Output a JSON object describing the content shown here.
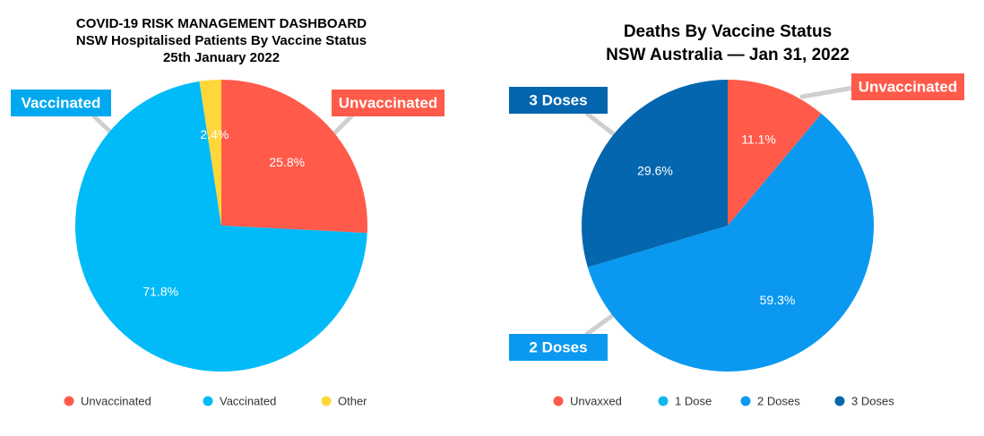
{
  "chart_data": [
    {
      "type": "pie",
      "title_lines": [
        "COVID-19 RISK MANAGEMENT DASHBOARD",
        "NSW Hospitalised Patients By Vaccine Status",
        "25th January 2022"
      ],
      "slices": [
        {
          "name": "Unvaccinated",
          "value": 25.8,
          "label": "25.8%",
          "color": "#FF5A4A"
        },
        {
          "name": "Vaccinated",
          "value": 71.8,
          "label": "71.8%",
          "color": "#00BBF7"
        },
        {
          "name": "Other",
          "value": 2.4,
          "label": "2.4%",
          "color": "#FFD73A"
        }
      ],
      "callouts": [
        {
          "text": "Vaccinated",
          "color": "#00A8F0"
        },
        {
          "text": "Unvaccinated",
          "color": "#FF5A4A"
        }
      ],
      "legend": {
        "position": "bottom",
        "items": [
          {
            "label": "Unvaccinated",
            "color": "#FF5A4A"
          },
          {
            "label": "Vaccinated",
            "color": "#00BBF7"
          },
          {
            "label": "Other",
            "color": "#FFD73A"
          }
        ]
      }
    },
    {
      "type": "pie",
      "title_lines": [
        "Deaths By Vaccine Status",
        "NSW Australia — Jan 31, 2022"
      ],
      "slices": [
        {
          "name": "Unvaxxed",
          "value": 11.1,
          "label": "11.1%",
          "color": "#FF5A4A"
        },
        {
          "name": "2 Doses",
          "value": 59.3,
          "label": "59.3%",
          "color": "#0A98F0"
        },
        {
          "name": "3 Doses",
          "value": 29.6,
          "label": "29.6%",
          "color": "#0466AE"
        }
      ],
      "callouts": [
        {
          "text": "3 Doses",
          "color": "#0466AE"
        },
        {
          "text": "Unvaccinated",
          "color": "#FF5A4A"
        },
        {
          "text": "2 Doses",
          "color": "#0A98F0"
        }
      ],
      "legend": {
        "position": "bottom",
        "items": [
          {
            "label": "Unvaxxed",
            "color": "#FF5A4A"
          },
          {
            "label": "1 Dose",
            "color": "#12B8F0"
          },
          {
            "label": "2 Doses",
            "color": "#0A98F0"
          },
          {
            "label": "3 Doses",
            "color": "#0466AE"
          }
        ]
      }
    }
  ]
}
